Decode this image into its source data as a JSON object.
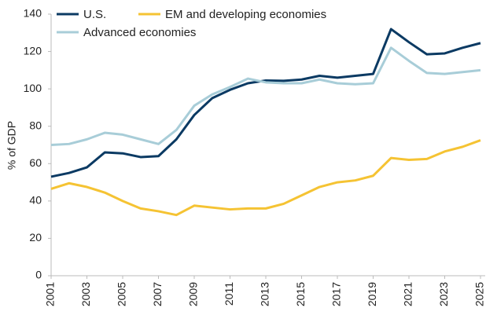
{
  "chart_data": {
    "type": "line",
    "ylabel": "% of GDP",
    "x": [
      2001,
      2002,
      2003,
      2004,
      2005,
      2006,
      2007,
      2008,
      2009,
      2010,
      2011,
      2012,
      2013,
      2014,
      2015,
      2016,
      2017,
      2018,
      2019,
      2020,
      2021,
      2022,
      2023,
      2024,
      2025
    ],
    "xlim": [
      2001,
      2025
    ],
    "xticks": [
      2001,
      2003,
      2005,
      2007,
      2009,
      2011,
      2013,
      2015,
      2017,
      2019,
      2021,
      2023,
      2025
    ],
    "ylim": [
      0,
      140
    ],
    "yticks": [
      0,
      20,
      40,
      60,
      80,
      100,
      120,
      140
    ],
    "grid": false,
    "legend": "top-left",
    "series": [
      {
        "name": "U.S.",
        "color": "#0b3a63",
        "values": [
          53,
          55,
          58,
          66,
          65.5,
          63.5,
          64,
          73,
          86,
          95,
          99.5,
          103,
          104.5,
          104.3,
          105,
          107,
          106,
          107,
          108,
          132,
          125,
          118.5,
          119,
          122,
          124.5
        ]
      },
      {
        "name": "EM and developing economies",
        "color": "#f5c333",
        "values": [
          46.5,
          49.5,
          47.5,
          44.5,
          40,
          36,
          34.5,
          32.5,
          37.5,
          36.5,
          35.5,
          36,
          36,
          38.5,
          43,
          47.5,
          50,
          51,
          53.5,
          63,
          62,
          62.5,
          66.5,
          69,
          72.5
        ]
      },
      {
        "name": "Advanced economies",
        "color": "#a8cdd8",
        "values": [
          70,
          70.5,
          73,
          76.5,
          75.5,
          73,
          70.5,
          78,
          91,
          97,
          101,
          105.5,
          103.5,
          103,
          103,
          105,
          103,
          102.5,
          103,
          122,
          115,
          108.5,
          108,
          109,
          110
        ]
      }
    ]
  }
}
